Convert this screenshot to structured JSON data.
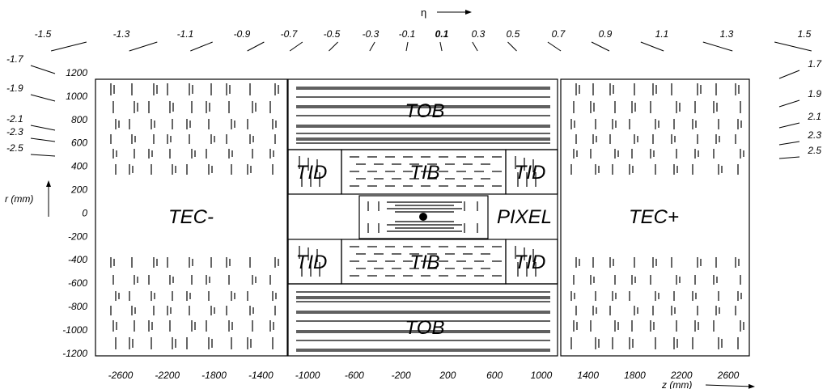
{
  "axis_labels": {
    "eta": "η",
    "r": "r (mm)",
    "z": "z (mm)"
  },
  "eta_top": [
    "-1.5",
    "-1.3",
    "-1.1",
    "-0.9",
    "-0.7",
    "-0.5",
    "-0.3",
    "-0.1",
    "0.1",
    "0.3",
    "0.5",
    "0.7",
    "0.9",
    "1.1",
    "1.3",
    "1.5"
  ],
  "eta_left": [
    "-1.7",
    "-1.9",
    "-2.1",
    "-2.3",
    "-2.5"
  ],
  "eta_right": [
    "1.7",
    "1.9",
    "2.1",
    "2.3",
    "2.5"
  ],
  "r_ticks": [
    "1200",
    "1000",
    "800",
    "600",
    "400",
    "200",
    "0",
    "-200",
    "-400",
    "-600",
    "-800",
    "-1000",
    "-1200"
  ],
  "z_ticks": [
    "-2600",
    "-2200",
    "-1800",
    "-1400",
    "-1000",
    "-600",
    "-200",
    "200",
    "600",
    "1000",
    "1400",
    "1800",
    "2200",
    "2600"
  ],
  "regions": {
    "tec_minus": "TEC-",
    "tec_plus": "TEC+",
    "tob_top": "TOB",
    "tob_bottom": "TOB",
    "tib_top": "TIB",
    "tib_bottom": "TIB",
    "tid_tl": "TID",
    "tid_tr": "TID",
    "tid_bl": "TID",
    "tid_br": "TID",
    "pixel": "PIXEL"
  }
}
